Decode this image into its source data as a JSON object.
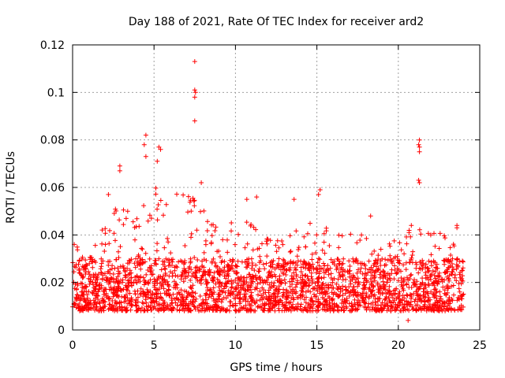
{
  "chart_data": {
    "type": "scatter",
    "title": "Day 188 of 2021, Rate Of TEC Index for receiver ard2",
    "xlabel": "GPS time / hours",
    "ylabel": "ROTI / TECUs",
    "xlim": [
      0,
      25
    ],
    "ylim": [
      0,
      0.12
    ],
    "xticks": [
      0,
      5,
      10,
      15,
      20,
      25
    ],
    "yticks": [
      0,
      0.02,
      0.04,
      0.06,
      0.08,
      0.1,
      0.12
    ],
    "ytick_labels": [
      "0",
      "0.02",
      "0.04",
      "0.06",
      "0.08",
      "0.1",
      "0.12"
    ],
    "grid": true,
    "marker": "+",
    "color": "#ff0000",
    "x_data_range": [
      0,
      24
    ],
    "typical_band": [
      0.008,
      0.03
    ],
    "envelope": [
      {
        "x": 0,
        "y": 0.038
      },
      {
        "x": 1,
        "y": 0.03
      },
      {
        "x": 2,
        "y": 0.05
      },
      {
        "x": 3,
        "y": 0.052
      },
      {
        "x": 4,
        "y": 0.056
      },
      {
        "x": 5,
        "y": 0.065
      },
      {
        "x": 6,
        "y": 0.055
      },
      {
        "x": 7,
        "y": 0.062
      },
      {
        "x": 8,
        "y": 0.052
      },
      {
        "x": 9,
        "y": 0.042
      },
      {
        "x": 10,
        "y": 0.047
      },
      {
        "x": 11,
        "y": 0.045
      },
      {
        "x": 12,
        "y": 0.04
      },
      {
        "x": 13,
        "y": 0.042
      },
      {
        "x": 14,
        "y": 0.045
      },
      {
        "x": 15,
        "y": 0.05
      },
      {
        "x": 16,
        "y": 0.04
      },
      {
        "x": 17,
        "y": 0.046
      },
      {
        "x": 18,
        "y": 0.045
      },
      {
        "x": 19,
        "y": 0.04
      },
      {
        "x": 20,
        "y": 0.037
      },
      {
        "x": 21,
        "y": 0.045
      },
      {
        "x": 22,
        "y": 0.04
      },
      {
        "x": 23,
        "y": 0.044
      },
      {
        "x": 24,
        "y": 0.035
      }
    ],
    "notable_points": [
      {
        "x": 7.5,
        "y": 0.113
      },
      {
        "x": 7.5,
        "y": 0.101
      },
      {
        "x": 7.55,
        "y": 0.1
      },
      {
        "x": 7.5,
        "y": 0.098
      },
      {
        "x": 7.5,
        "y": 0.088
      },
      {
        "x": 4.5,
        "y": 0.082
      },
      {
        "x": 4.4,
        "y": 0.078
      },
      {
        "x": 5.3,
        "y": 0.077
      },
      {
        "x": 5.4,
        "y": 0.076
      },
      {
        "x": 4.5,
        "y": 0.073
      },
      {
        "x": 5.2,
        "y": 0.071
      },
      {
        "x": 21.3,
        "y": 0.08
      },
      {
        "x": 21.25,
        "y": 0.078
      },
      {
        "x": 21.3,
        "y": 0.077
      },
      {
        "x": 21.3,
        "y": 0.075
      },
      {
        "x": 21.25,
        "y": 0.063
      },
      {
        "x": 21.3,
        "y": 0.062
      },
      {
        "x": 2.9,
        "y": 0.069
      },
      {
        "x": 2.9,
        "y": 0.067
      },
      {
        "x": 2.2,
        "y": 0.057
      },
      {
        "x": 15.2,
        "y": 0.059
      },
      {
        "x": 15.1,
        "y": 0.057
      },
      {
        "x": 13.6,
        "y": 0.055
      },
      {
        "x": 11.3,
        "y": 0.056
      },
      {
        "x": 10.7,
        "y": 0.055
      },
      {
        "x": 7.9,
        "y": 0.062
      },
      {
        "x": 18.3,
        "y": 0.048
      },
      {
        "x": 20.8,
        "y": 0.044
      },
      {
        "x": 23.6,
        "y": 0.043
      },
      {
        "x": 23.6,
        "y": 0.044
      },
      {
        "x": 0.1,
        "y": 0.036
      },
      {
        "x": 20.6,
        "y": 0.004
      }
    ]
  }
}
